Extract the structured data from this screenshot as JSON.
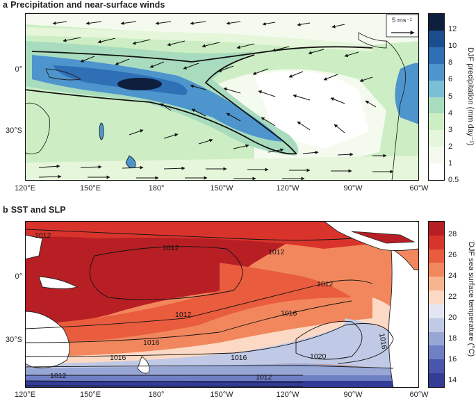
{
  "panel_a": {
    "letter": "a",
    "title": "Precipitation and near-surface winds",
    "scale_arrow_label": "5 ms⁻¹",
    "colorbar_label": "DJF precipitation (mm day⁻¹)",
    "colorbar_ticks": [
      "12",
      "10",
      "8",
      "6",
      "5",
      "4",
      "3",
      "2",
      "1",
      "0.5"
    ],
    "colorbar_colors": [
      "#0d1f3c",
      "#1a4e8e",
      "#2f6fb6",
      "#4d95cc",
      "#7bbfd7",
      "#a9dcbe",
      "#cdeec4",
      "#e6f6da",
      "#f4fbee",
      "#ffffff"
    ]
  },
  "panel_b": {
    "letter": "b",
    "title": "SST and SLP",
    "colorbar_label": "DJF sea surface temperature (°C)",
    "colorbar_ticks": [
      "28",
      "26",
      "24",
      "22",
      "20",
      "18",
      "16",
      "14"
    ],
    "colorbar_colors": [
      "#b81f24",
      "#d8342c",
      "#ea5c3e",
      "#f2875e",
      "#f8b48f",
      "#fbd9c4",
      "#e3e6f2",
      "#c0cae6",
      "#98a6d6",
      "#6f7fc3",
      "#4a55ad",
      "#333c97"
    ],
    "isobar_labels": [
      {
        "text": "1012"
      },
      {
        "text": "1012"
      },
      {
        "text": "1012"
      },
      {
        "text": "1012"
      },
      {
        "text": "1012"
      },
      {
        "text": "1016"
      },
      {
        "text": "1016"
      },
      {
        "text": "1016"
      },
      {
        "text": "1016"
      },
      {
        "text": "1016"
      },
      {
        "text": "1020"
      },
      {
        "text": "1012"
      },
      {
        "text": "1012"
      }
    ]
  },
  "axes": {
    "x_ticks": [
      "120°E",
      "150°E",
      "180°",
      "150°W",
      "120°W",
      "90°W",
      "60°W"
    ],
    "y_ticks": [
      "0°",
      "30°S"
    ]
  }
}
